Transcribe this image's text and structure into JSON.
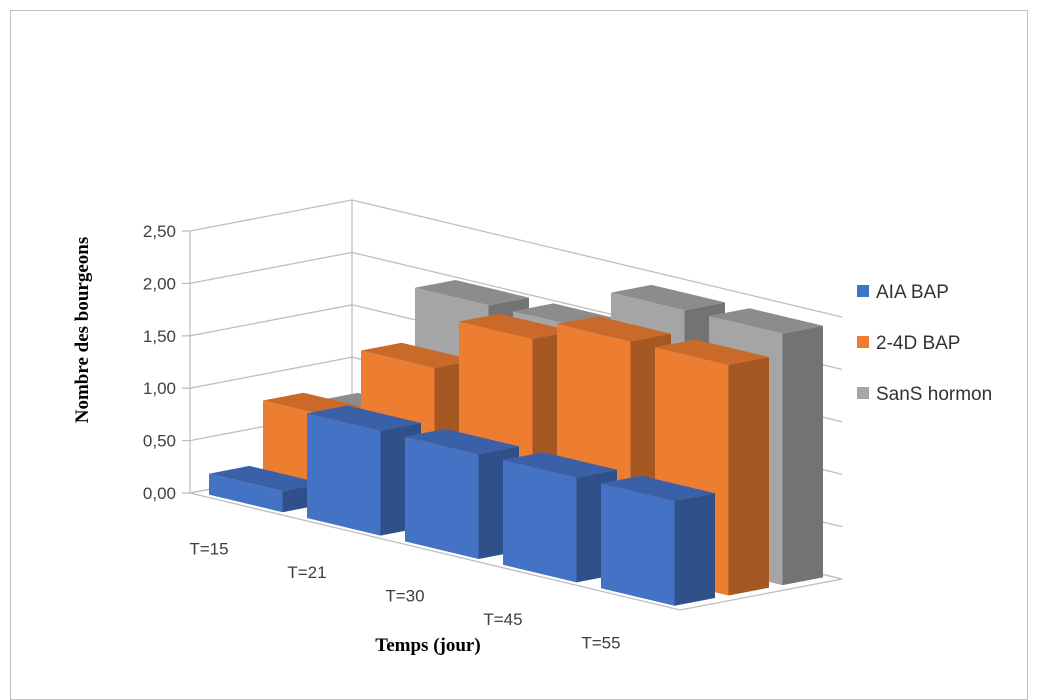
{
  "chart_data": {
    "type": "bar",
    "variant": "3d-column",
    "title": "",
    "xlabel": "Temps (jour)",
    "ylabel": "Nombre des bourgeons",
    "categories": [
      "T=15",
      "T=21",
      "T=30",
      "T=45",
      "T=55"
    ],
    "ylim": [
      0,
      2.5
    ],
    "yticks": [
      "0,00",
      "0,50",
      "1,00",
      "1,50",
      "2,00",
      "2,50"
    ],
    "grid": true,
    "legend_position": "right",
    "series": [
      {
        "name": "AIA BAP",
        "values": [
          0.2,
          1.0,
          1.0,
          1.0,
          1.0
        ],
        "color": "#4472C4"
      },
      {
        "name": "2-4D BAP",
        "values": [
          0.8,
          1.5,
          2.0,
          2.2,
          2.2
        ],
        "color": "#ED7D31"
      },
      {
        "name": "SanS hormon",
        "values": [
          0.7,
          2.0,
          2.0,
          2.4,
          2.4
        ],
        "color": "#A5A5A5"
      }
    ]
  }
}
